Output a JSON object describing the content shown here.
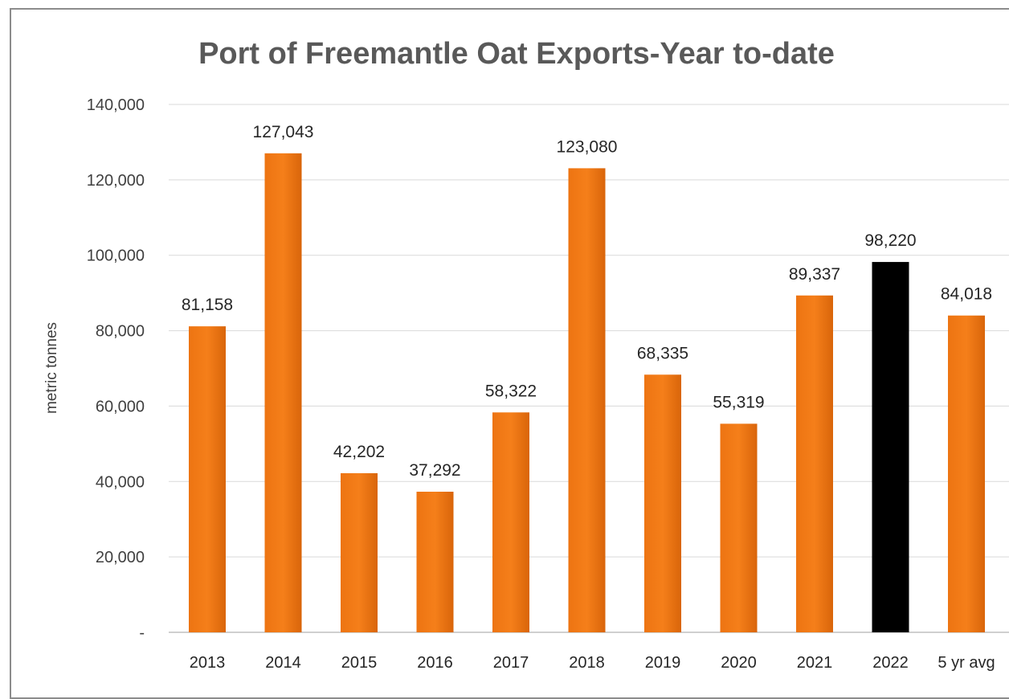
{
  "chart_data": {
    "type": "bar",
    "title": "Port of Freemantle Oat Exports-Year  to-date",
    "xlabel": "",
    "ylabel": "metric tonnes",
    "categories": [
      "2013",
      "2014",
      "2015",
      "2016",
      "2017",
      "2018",
      "2019",
      "2020",
      "2021",
      "2022",
      "5 yr avg"
    ],
    "values": [
      81158,
      127043,
      42202,
      37292,
      58322,
      123080,
      68335,
      55319,
      89337,
      98220,
      84018
    ],
    "data_labels": [
      "81,158",
      "127,043",
      "42,202",
      "37,292",
      "58,322",
      "123,080",
      "68,335",
      "55,319",
      "89,337",
      "98,220",
      "84,018"
    ],
    "ylim": [
      0,
      140000
    ],
    "yticks": [
      0,
      20000,
      40000,
      60000,
      80000,
      100000,
      120000,
      140000
    ],
    "ytick_labels": [
      "-",
      "20,000",
      "40,000",
      "60,000",
      "80,000",
      "100,000",
      "120,000",
      "140,000"
    ],
    "grid": true,
    "legend": "none",
    "colors": {
      "bar_default": "#ED7412",
      "bar_highlight": "#000000",
      "highlight_category": "2022"
    }
  }
}
